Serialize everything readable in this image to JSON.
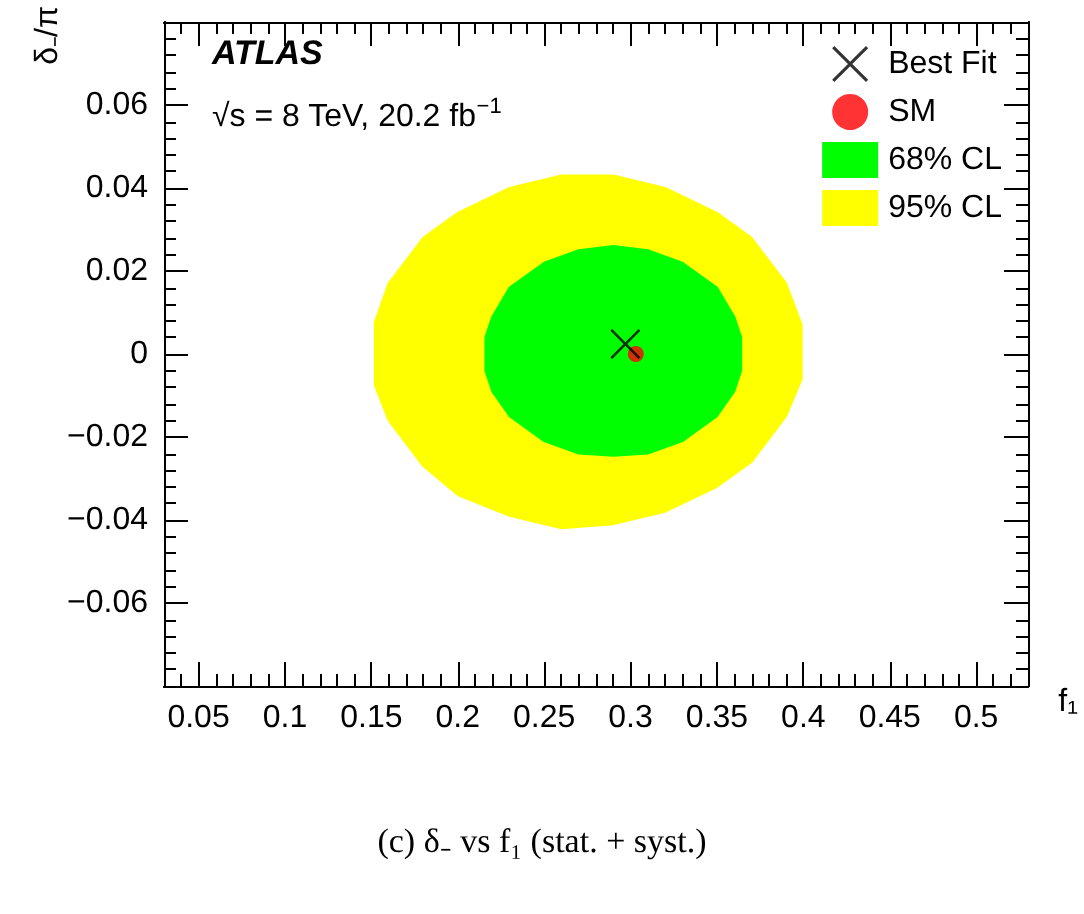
{
  "chart_data": {
    "type": "scatter",
    "xlabel": "f₁",
    "ylabel": "δ₋/π",
    "annotations": [
      "ATLAS",
      "√s = 8 TeV, 20.2 fb$^{−1}$",
      "(c) δ₋ vs f₁ (stat. + syst.)"
    ],
    "xlim": [
      0.03,
      0.53
    ],
    "xticks": [
      0.05,
      0.1,
      0.15,
      0.2,
      0.25,
      0.3,
      0.35,
      0.4,
      0.45,
      0.5
    ],
    "ylim": [
      -0.08,
      0.08
    ],
    "yticks": [
      -0.06,
      -0.04,
      -0.02,
      0,
      0.02,
      0.04,
      0.06
    ],
    "grid": false,
    "legend": "top right",
    "series": [
      {
        "name": "Best Fit",
        "marker": "cross",
        "color": "#000000",
        "x": [
          0.297
        ],
        "values": [
          0.0024
        ]
      },
      {
        "name": "SM",
        "marker": "circle",
        "color": "#ff0000",
        "x": [
          0.303
        ],
        "values": [
          0
        ]
      },
      {
        "name": "68% CL",
        "type": "area",
        "color": "#00ff00",
        "x": [
          0.216,
          0.22,
          0.23,
          0.25,
          0.27,
          0.29,
          0.31,
          0.33,
          0.35,
          0.36,
          0.364,
          0.364,
          0.36,
          0.35,
          0.33,
          0.31,
          0.29,
          0.27,
          0.25,
          0.23,
          0.22,
          0.216,
          0.216
        ],
        "values": [
          0.004,
          0.009,
          0.016,
          0.022,
          0.025,
          0.026,
          0.025,
          0.022,
          0.016,
          0.009,
          0.004,
          -0.004,
          -0.009,
          -0.015,
          -0.021,
          -0.024,
          -0.0245,
          -0.024,
          -0.021,
          -0.015,
          -0.009,
          -0.004,
          0.004
        ]
      },
      {
        "name": "95% CL",
        "type": "area",
        "color": "#ffff00",
        "x": [
          0.152,
          0.16,
          0.18,
          0.2,
          0.23,
          0.26,
          0.29,
          0.32,
          0.35,
          0.37,
          0.39,
          0.399,
          0.399,
          0.39,
          0.37,
          0.35,
          0.32,
          0.29,
          0.26,
          0.23,
          0.2,
          0.18,
          0.16,
          0.152,
          0.152
        ],
        "values": [
          0.0077,
          0.017,
          0.028,
          0.034,
          0.04,
          0.043,
          0.043,
          0.04,
          0.034,
          0.028,
          0.017,
          0.007,
          -0.006,
          -0.015,
          -0.026,
          -0.032,
          -0.038,
          -0.041,
          -0.042,
          -0.039,
          -0.034,
          -0.027,
          -0.016,
          -0.0075,
          0.0077
        ]
      }
    ]
  }
}
